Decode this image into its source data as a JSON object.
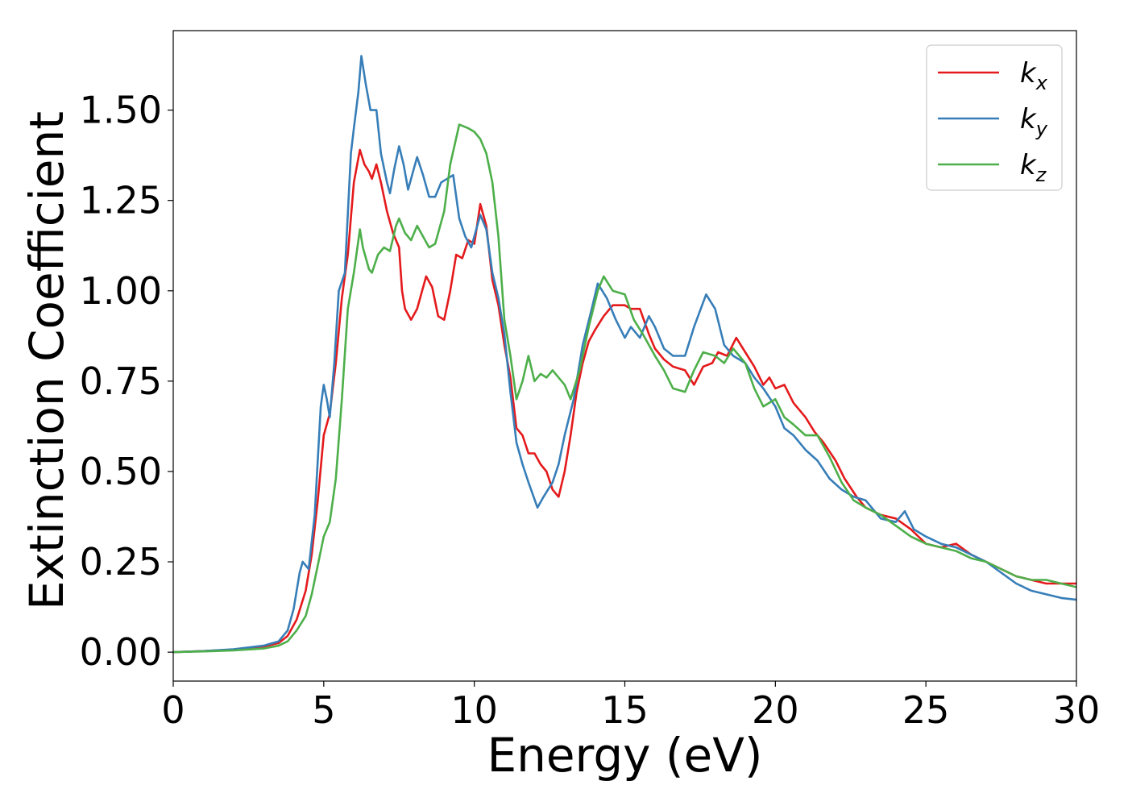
{
  "chart_data": {
    "type": "line",
    "xlabel": "Energy (eV)",
    "ylabel": "Extinction Coefficient",
    "xlim": [
      0,
      30
    ],
    "ylim": [
      -0.08,
      1.72
    ],
    "xticks": [
      0,
      5,
      10,
      15,
      20,
      25,
      30
    ],
    "xtick_labels": [
      "0",
      "5",
      "10",
      "15",
      "20",
      "25",
      "30"
    ],
    "yticks": [
      0.0,
      0.25,
      0.5,
      0.75,
      1.0,
      1.25,
      1.5
    ],
    "ytick_labels": [
      "0.00",
      "0.25",
      "0.50",
      "0.75",
      "1.00",
      "1.25",
      "1.50"
    ],
    "grid": false,
    "legend_position": "top-right",
    "series": [
      {
        "name": "k",
        "subscript": "x",
        "color": "#e41a1c",
        "points": [
          [
            0,
            0
          ],
          [
            1,
            0.003
          ],
          [
            2,
            0.007
          ],
          [
            3,
            0.015
          ],
          [
            3.5,
            0.025
          ],
          [
            3.8,
            0.045
          ],
          [
            4.1,
            0.09
          ],
          [
            4.4,
            0.17
          ],
          [
            4.6,
            0.27
          ],
          [
            4.8,
            0.42
          ],
          [
            5,
            0.6
          ],
          [
            5.2,
            0.66
          ],
          [
            5.4,
            0.8
          ],
          [
            5.6,
            0.98
          ],
          [
            5.8,
            1.1
          ],
          [
            6,
            1.3
          ],
          [
            6.2,
            1.39
          ],
          [
            6.35,
            1.35
          ],
          [
            6.5,
            1.33
          ],
          [
            6.6,
            1.31
          ],
          [
            6.75,
            1.35
          ],
          [
            6.9,
            1.3
          ],
          [
            7.1,
            1.22
          ],
          [
            7.3,
            1.16
          ],
          [
            7.5,
            1.12
          ],
          [
            7.6,
            1.0
          ],
          [
            7.7,
            0.95
          ],
          [
            7.9,
            0.92
          ],
          [
            8.1,
            0.95
          ],
          [
            8.4,
            1.04
          ],
          [
            8.6,
            1.01
          ],
          [
            8.8,
            0.93
          ],
          [
            9,
            0.92
          ],
          [
            9.2,
            1.0
          ],
          [
            9.4,
            1.1
          ],
          [
            9.6,
            1.09
          ],
          [
            9.8,
            1.14
          ],
          [
            10,
            1.13
          ],
          [
            10.2,
            1.24
          ],
          [
            10.4,
            1.18
          ],
          [
            10.6,
            1.03
          ],
          [
            10.8,
            0.96
          ],
          [
            11,
            0.85
          ],
          [
            11.2,
            0.76
          ],
          [
            11.4,
            0.62
          ],
          [
            11.6,
            0.6
          ],
          [
            11.8,
            0.55
          ],
          [
            12,
            0.55
          ],
          [
            12.2,
            0.52
          ],
          [
            12.4,
            0.5
          ],
          [
            12.6,
            0.45
          ],
          [
            12.8,
            0.43
          ],
          [
            13,
            0.5
          ],
          [
            13.2,
            0.6
          ],
          [
            13.4,
            0.72
          ],
          [
            13.6,
            0.8
          ],
          [
            13.8,
            0.86
          ],
          [
            14,
            0.89
          ],
          [
            14.3,
            0.93
          ],
          [
            14.6,
            0.96
          ],
          [
            15,
            0.96
          ],
          [
            15.2,
            0.95
          ],
          [
            15.5,
            0.95
          ],
          [
            15.8,
            0.88
          ],
          [
            16,
            0.84
          ],
          [
            16.3,
            0.81
          ],
          [
            16.6,
            0.79
          ],
          [
            17,
            0.78
          ],
          [
            17.3,
            0.74
          ],
          [
            17.6,
            0.79
          ],
          [
            17.9,
            0.8
          ],
          [
            18.1,
            0.83
          ],
          [
            18.4,
            0.82
          ],
          [
            18.7,
            0.87
          ],
          [
            19,
            0.83
          ],
          [
            19.3,
            0.79
          ],
          [
            19.6,
            0.74
          ],
          [
            19.8,
            0.76
          ],
          [
            20,
            0.73
          ],
          [
            20.3,
            0.74
          ],
          [
            20.6,
            0.69
          ],
          [
            21,
            0.65
          ],
          [
            21.3,
            0.61
          ],
          [
            21.6,
            0.58
          ],
          [
            22,
            0.53
          ],
          [
            22.3,
            0.48
          ],
          [
            22.7,
            0.43
          ],
          [
            23,
            0.4
          ],
          [
            23.5,
            0.38
          ],
          [
            24,
            0.37
          ],
          [
            24.5,
            0.34
          ],
          [
            25,
            0.3
          ],
          [
            25.5,
            0.29
          ],
          [
            26,
            0.3
          ],
          [
            26.5,
            0.27
          ],
          [
            27,
            0.25
          ],
          [
            27.5,
            0.23
          ],
          [
            28,
            0.21
          ],
          [
            28.5,
            0.2
          ],
          [
            29,
            0.19
          ],
          [
            29.5,
            0.19
          ],
          [
            30,
            0.19
          ]
        ]
      },
      {
        "name": "k",
        "subscript": "y",
        "color": "#377eb8",
        "points": [
          [
            0,
            0
          ],
          [
            1,
            0.003
          ],
          [
            2,
            0.008
          ],
          [
            3,
            0.018
          ],
          [
            3.5,
            0.03
          ],
          [
            3.8,
            0.06
          ],
          [
            4,
            0.12
          ],
          [
            4.2,
            0.22
          ],
          [
            4.3,
            0.25
          ],
          [
            4.5,
            0.23
          ],
          [
            4.7,
            0.38
          ],
          [
            4.9,
            0.68
          ],
          [
            5,
            0.74
          ],
          [
            5.1,
            0.7
          ],
          [
            5.2,
            0.65
          ],
          [
            5.35,
            0.8
          ],
          [
            5.5,
            1.0
          ],
          [
            5.7,
            1.05
          ],
          [
            5.9,
            1.38
          ],
          [
            6,
            1.45
          ],
          [
            6.15,
            1.55
          ],
          [
            6.25,
            1.65
          ],
          [
            6.4,
            1.57
          ],
          [
            6.55,
            1.5
          ],
          [
            6.75,
            1.5
          ],
          [
            6.9,
            1.38
          ],
          [
            7.1,
            1.3
          ],
          [
            7.2,
            1.27
          ],
          [
            7.35,
            1.34
          ],
          [
            7.5,
            1.4
          ],
          [
            7.65,
            1.35
          ],
          [
            7.8,
            1.28
          ],
          [
            8,
            1.34
          ],
          [
            8.1,
            1.37
          ],
          [
            8.3,
            1.32
          ],
          [
            8.5,
            1.26
          ],
          [
            8.7,
            1.26
          ],
          [
            8.9,
            1.3
          ],
          [
            9.1,
            1.31
          ],
          [
            9.3,
            1.32
          ],
          [
            9.5,
            1.2
          ],
          [
            9.7,
            1.15
          ],
          [
            9.9,
            1.12
          ],
          [
            10.2,
            1.21
          ],
          [
            10.4,
            1.17
          ],
          [
            10.6,
            1.05
          ],
          [
            10.8,
            0.98
          ],
          [
            11,
            0.88
          ],
          [
            11.2,
            0.72
          ],
          [
            11.4,
            0.58
          ],
          [
            11.6,
            0.52
          ],
          [
            11.8,
            0.47
          ],
          [
            12.1,
            0.4
          ],
          [
            12.3,
            0.43
          ],
          [
            12.6,
            0.47
          ],
          [
            12.8,
            0.52
          ],
          [
            13,
            0.6
          ],
          [
            13.3,
            0.7
          ],
          [
            13.6,
            0.85
          ],
          [
            13.9,
            0.95
          ],
          [
            14.1,
            1.02
          ],
          [
            14.4,
            0.98
          ],
          [
            14.7,
            0.92
          ],
          [
            15,
            0.87
          ],
          [
            15.2,
            0.9
          ],
          [
            15.5,
            0.87
          ],
          [
            15.8,
            0.93
          ],
          [
            16,
            0.9
          ],
          [
            16.3,
            0.84
          ],
          [
            16.6,
            0.82
          ],
          [
            17,
            0.82
          ],
          [
            17.3,
            0.9
          ],
          [
            17.7,
            0.99
          ],
          [
            18,
            0.95
          ],
          [
            18.3,
            0.85
          ],
          [
            18.6,
            0.82
          ],
          [
            19,
            0.8
          ],
          [
            19.3,
            0.76
          ],
          [
            19.6,
            0.73
          ],
          [
            20,
            0.68
          ],
          [
            20.3,
            0.62
          ],
          [
            20.6,
            0.6
          ],
          [
            21,
            0.56
          ],
          [
            21.4,
            0.53
          ],
          [
            21.8,
            0.48
          ],
          [
            22.2,
            0.45
          ],
          [
            22.6,
            0.43
          ],
          [
            23,
            0.42
          ],
          [
            23.5,
            0.37
          ],
          [
            24,
            0.36
          ],
          [
            24.3,
            0.39
          ],
          [
            24.6,
            0.34
          ],
          [
            25,
            0.32
          ],
          [
            25.5,
            0.3
          ],
          [
            26,
            0.29
          ],
          [
            26.5,
            0.27
          ],
          [
            27,
            0.25
          ],
          [
            27.5,
            0.22
          ],
          [
            28,
            0.19
          ],
          [
            28.5,
            0.17
          ],
          [
            29,
            0.16
          ],
          [
            29.5,
            0.15
          ],
          [
            30,
            0.145
          ]
        ]
      },
      {
        "name": "k",
        "subscript": "z",
        "color": "#4daf4a",
        "points": [
          [
            0,
            0
          ],
          [
            1,
            0.002
          ],
          [
            2,
            0.005
          ],
          [
            3,
            0.01
          ],
          [
            3.5,
            0.018
          ],
          [
            3.8,
            0.03
          ],
          [
            4.1,
            0.06
          ],
          [
            4.4,
            0.1
          ],
          [
            4.6,
            0.16
          ],
          [
            4.8,
            0.24
          ],
          [
            5,
            0.32
          ],
          [
            5.2,
            0.36
          ],
          [
            5.4,
            0.48
          ],
          [
            5.6,
            0.7
          ],
          [
            5.8,
            0.95
          ],
          [
            6,
            1.05
          ],
          [
            6.2,
            1.17
          ],
          [
            6.3,
            1.12
          ],
          [
            6.5,
            1.06
          ],
          [
            6.6,
            1.05
          ],
          [
            6.8,
            1.1
          ],
          [
            7,
            1.12
          ],
          [
            7.2,
            1.11
          ],
          [
            7.4,
            1.18
          ],
          [
            7.5,
            1.2
          ],
          [
            7.7,
            1.16
          ],
          [
            7.9,
            1.14
          ],
          [
            8.1,
            1.18
          ],
          [
            8.3,
            1.15
          ],
          [
            8.5,
            1.12
          ],
          [
            8.7,
            1.13
          ],
          [
            9,
            1.22
          ],
          [
            9.2,
            1.35
          ],
          [
            9.5,
            1.46
          ],
          [
            9.8,
            1.45
          ],
          [
            10,
            1.44
          ],
          [
            10.2,
            1.42
          ],
          [
            10.4,
            1.38
          ],
          [
            10.6,
            1.3
          ],
          [
            10.8,
            1.15
          ],
          [
            11,
            0.92
          ],
          [
            11.2,
            0.82
          ],
          [
            11.4,
            0.7
          ],
          [
            11.6,
            0.75
          ],
          [
            11.8,
            0.82
          ],
          [
            12,
            0.75
          ],
          [
            12.2,
            0.77
          ],
          [
            12.4,
            0.76
          ],
          [
            12.6,
            0.78
          ],
          [
            12.8,
            0.76
          ],
          [
            13,
            0.74
          ],
          [
            13.2,
            0.7
          ],
          [
            13.5,
            0.78
          ],
          [
            13.8,
            0.9
          ],
          [
            14.1,
            1.0
          ],
          [
            14.3,
            1.04
          ],
          [
            14.6,
            1.0
          ],
          [
            15,
            0.99
          ],
          [
            15.3,
            0.92
          ],
          [
            15.6,
            0.88
          ],
          [
            16,
            0.82
          ],
          [
            16.3,
            0.78
          ],
          [
            16.6,
            0.73
          ],
          [
            17,
            0.72
          ],
          [
            17.3,
            0.78
          ],
          [
            17.6,
            0.83
          ],
          [
            18,
            0.82
          ],
          [
            18.3,
            0.8
          ],
          [
            18.6,
            0.84
          ],
          [
            19,
            0.8
          ],
          [
            19.3,
            0.73
          ],
          [
            19.6,
            0.68
          ],
          [
            20,
            0.7
          ],
          [
            20.3,
            0.65
          ],
          [
            20.6,
            0.63
          ],
          [
            21,
            0.6
          ],
          [
            21.4,
            0.6
          ],
          [
            21.8,
            0.54
          ],
          [
            22.2,
            0.47
          ],
          [
            22.6,
            0.42
          ],
          [
            23,
            0.4
          ],
          [
            23.5,
            0.38
          ],
          [
            24,
            0.35
          ],
          [
            24.5,
            0.32
          ],
          [
            25,
            0.3
          ],
          [
            25.5,
            0.29
          ],
          [
            26,
            0.28
          ],
          [
            26.5,
            0.26
          ],
          [
            27,
            0.25
          ],
          [
            27.5,
            0.23
          ],
          [
            28,
            0.21
          ],
          [
            28.5,
            0.2
          ],
          [
            29,
            0.2
          ],
          [
            29.5,
            0.19
          ],
          [
            30,
            0.18
          ]
        ]
      }
    ]
  }
}
